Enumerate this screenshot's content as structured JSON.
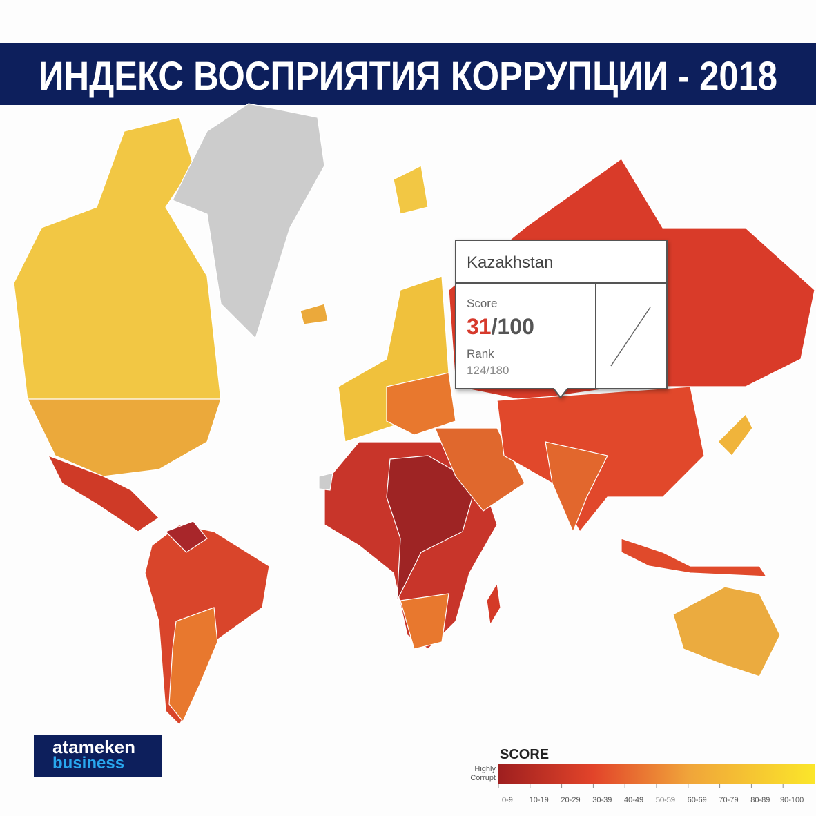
{
  "header": {
    "title": "ИНДЕКС ВОСПРИЯТИЯ КОРРУПЦИИ - 2018"
  },
  "tooltip": {
    "country": "Kazakhstan",
    "score_label": "Score",
    "score": 31,
    "score_max": "/100",
    "rank_label": "Rank",
    "rank": "124/180"
  },
  "legend": {
    "title": "SCORE",
    "low_label": [
      "Highly",
      "Corrupt"
    ],
    "ranges": [
      "0-9",
      "10-19",
      "20-29",
      "30-39",
      "40-49",
      "50-59",
      "60-69",
      "70-79",
      "80-89",
      "90-100"
    ]
  },
  "logo": {
    "line1": "atameken",
    "line2": "business"
  }
}
